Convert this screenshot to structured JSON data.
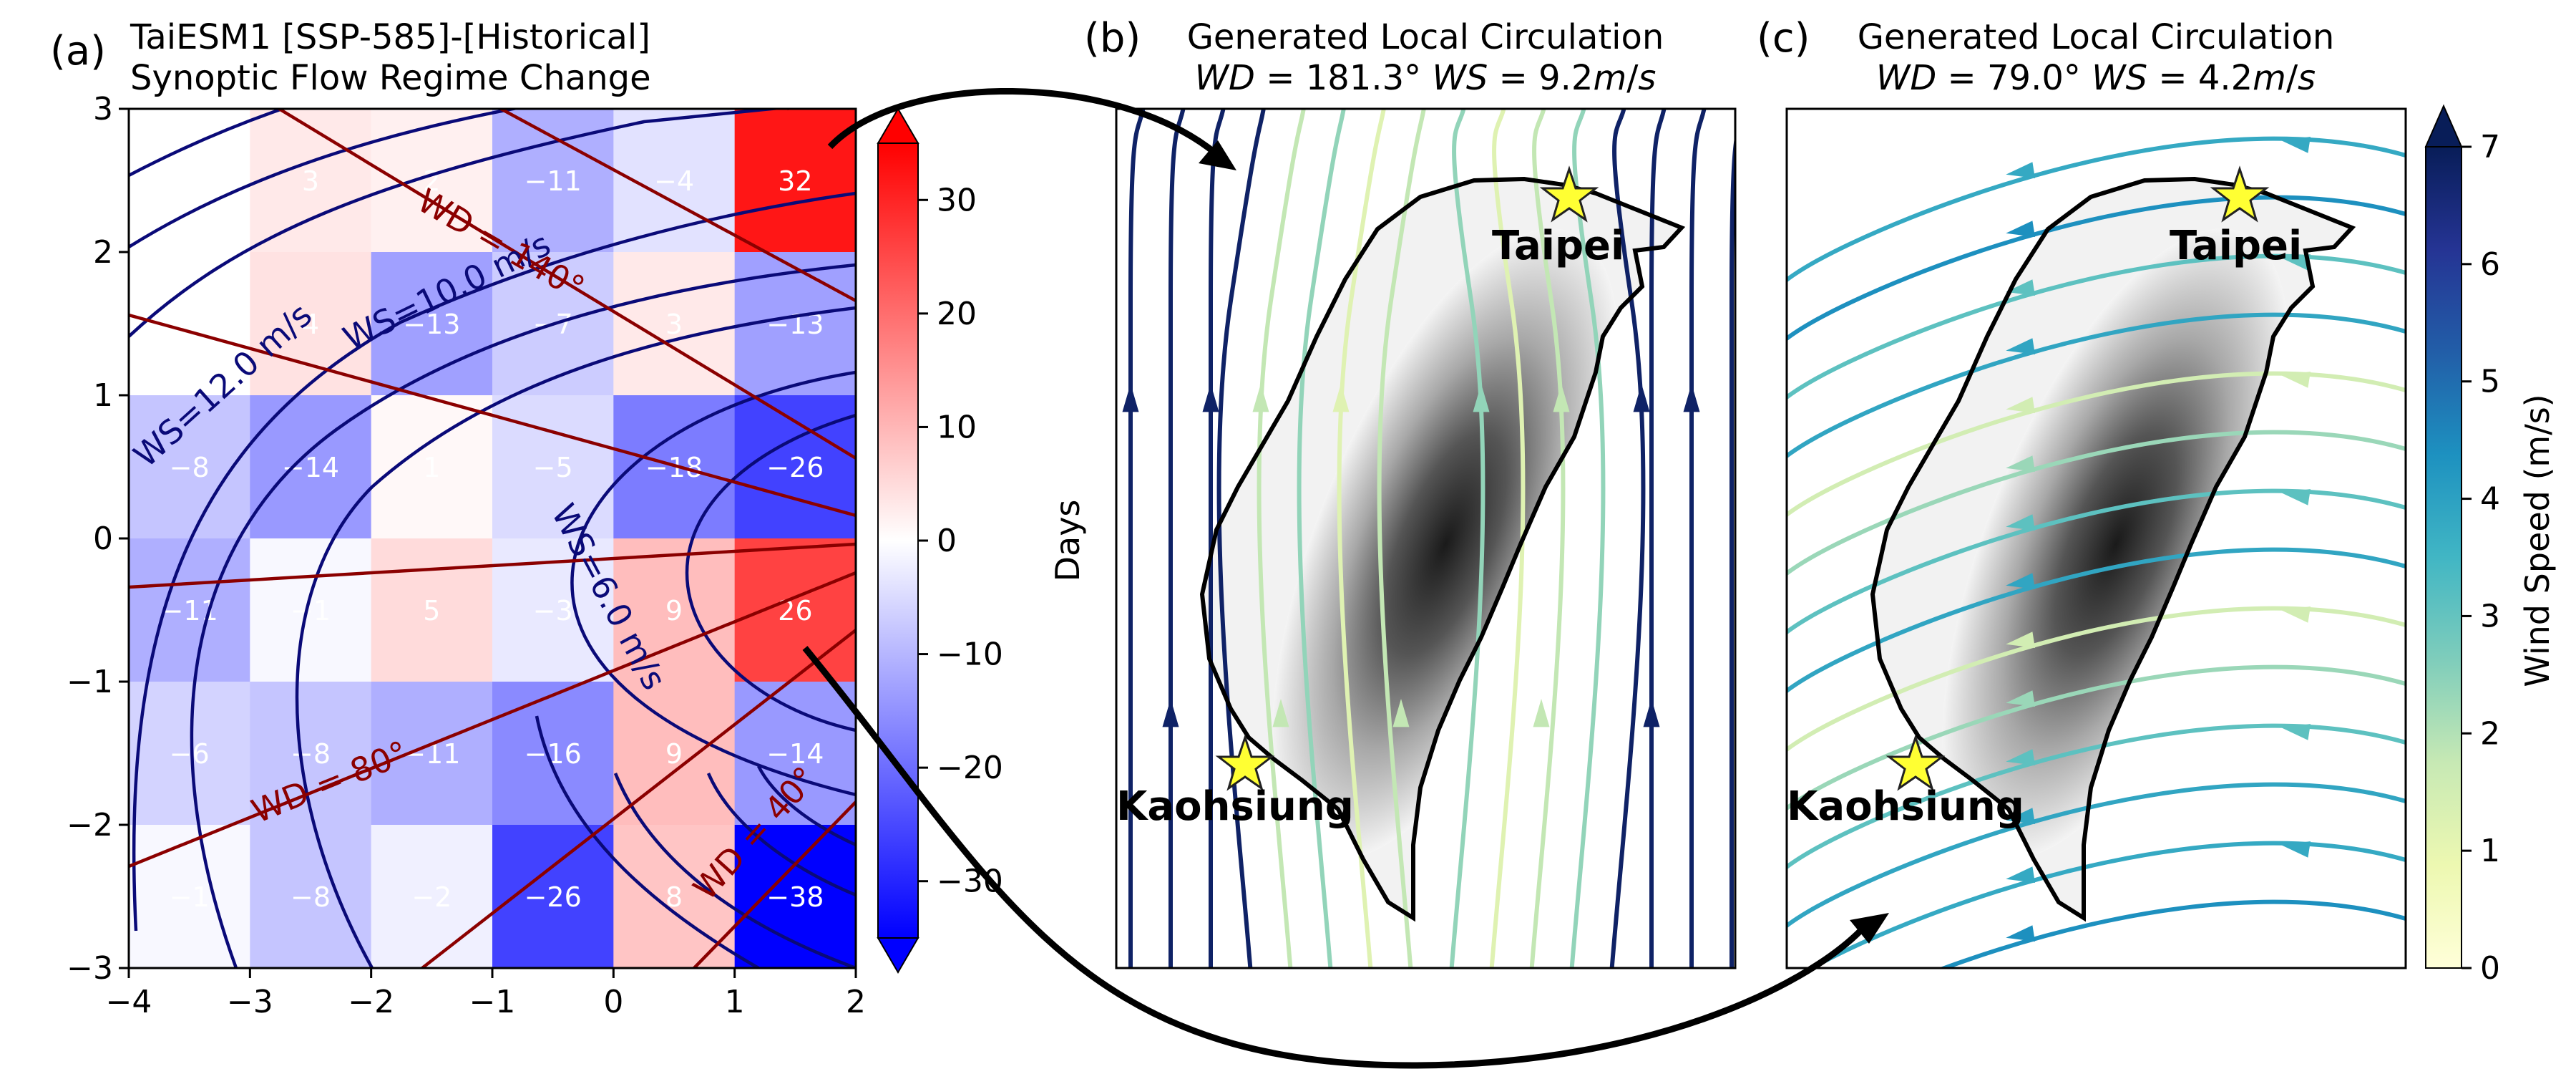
{
  "panel_a": {
    "letter": "(a)",
    "title_line1": "TaiESM1 [SSP-585]-[Historical]",
    "title_line2": "Synoptic Flow Regime Change"
  },
  "panel_b": {
    "letter": "(b)",
    "title_line1": "Generated Local Circulation",
    "wd": "181.3",
    "ws": "9.2",
    "city_north": "Taipei",
    "city_south": "Kaohsiung"
  },
  "panel_c": {
    "letter": "(c)",
    "title_line1": "Generated Local Circulation",
    "wd": "79.0",
    "ws": "4.2",
    "city_north": "Taipei",
    "city_south": "Kaohsiung"
  },
  "colorbar_days": {
    "label": "Days",
    "ticks": [
      30,
      20,
      10,
      0,
      -10,
      -20,
      -30
    ],
    "range": [
      -35,
      35
    ],
    "extend": "both",
    "colormap": "bwr"
  },
  "colorbar_ws": {
    "label": "Wind Speed (m/s)",
    "ticks": [
      0,
      1,
      2,
      3,
      4,
      5,
      6,
      7
    ],
    "range": [
      0,
      7
    ],
    "extend": "max",
    "colormap": "YlGnBu"
  },
  "chart_data": {
    "type": "heatmap",
    "xlim": [
      -4,
      2
    ],
    "ylim": [
      -3,
      3
    ],
    "x_edges": [
      -4,
      -3,
      -2,
      -1,
      0,
      1,
      2
    ],
    "y_edges": [
      -3,
      -2,
      -1,
      0,
      1,
      2,
      3
    ],
    "x_ticks": [
      -4,
      -3,
      -2,
      -1,
      0,
      1,
      2
    ],
    "y_ticks": [
      -3,
      -2,
      -1,
      0,
      1,
      2,
      3
    ],
    "rows_top_to_bottom": [
      [
        0,
        3,
        2,
        -11,
        -4,
        32
      ],
      [
        0,
        4,
        -13,
        -7,
        3,
        -13
      ],
      [
        -8,
        -14,
        1,
        -5,
        -18,
        -26
      ],
      [
        -11,
        -1,
        5,
        -3,
        9,
        26
      ],
      [
        -6,
        -8,
        -11,
        -16,
        9,
        -14
      ],
      [
        -1,
        -8,
        -2,
        -26,
        8,
        -38
      ]
    ],
    "ws_contours": [
      {
        "label": "WS=12.0 m/s",
        "value": 12.0
      },
      {
        "label": "WS=10.0 m/s",
        "value": 10.0
      },
      {
        "label": "WS=6.0 m/s",
        "value": 6.0
      }
    ],
    "wd_contours": [
      {
        "label": "WD = 140°",
        "value": 140
      },
      {
        "label": "WD = 80°",
        "value": 80
      },
      {
        "label": "WD = 40°",
        "value": 40
      }
    ],
    "colors": {
      "ws_contour": "#0a0a78",
      "wd_contour": "#8b0000"
    }
  }
}
